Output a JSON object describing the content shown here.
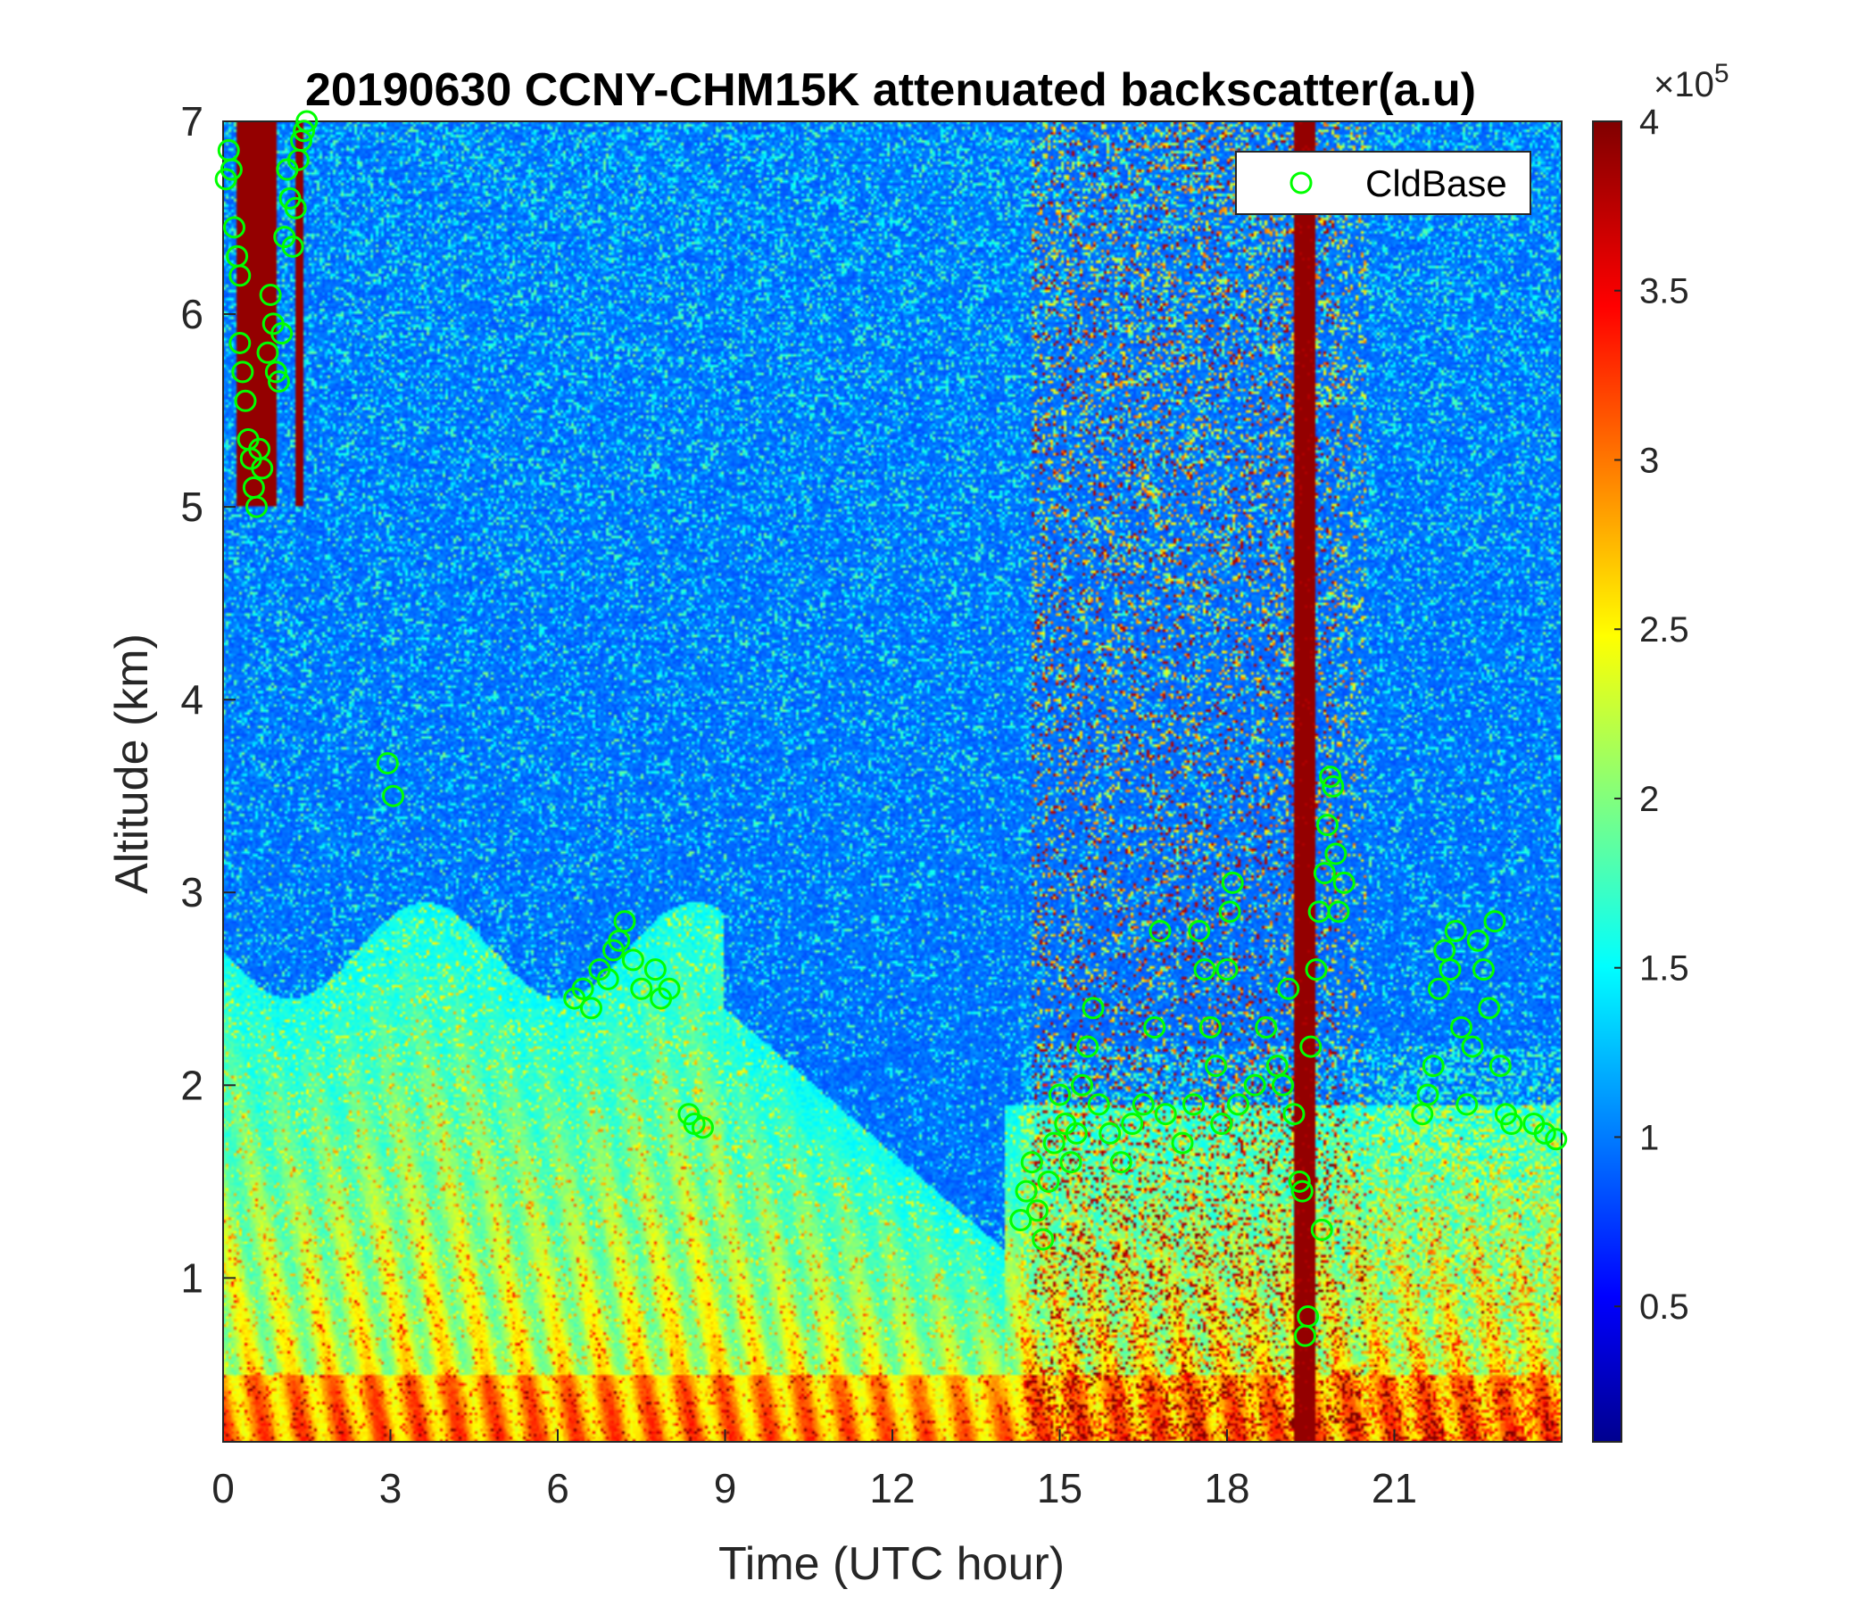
{
  "chart_data": {
    "type": "heatmap",
    "title": "20190630 CCNY-CHM15K attenuated backscatter(a.u)",
    "xlabel": "Time (UTC hour)",
    "ylabel": "Altitude (km)",
    "xlim": [
      0,
      24
    ],
    "ylim": [
      0.15,
      7
    ],
    "xticks": [
      0,
      3,
      6,
      9,
      12,
      15,
      18,
      21
    ],
    "xtick_labels": [
      "0",
      "3",
      "6",
      "9",
      "12",
      "15",
      "18",
      "21"
    ],
    "yticks": [
      1,
      2,
      3,
      4,
      5,
      6,
      7
    ],
    "ytick_labels": [
      "1",
      "2",
      "3",
      "4",
      "5",
      "6",
      "7"
    ],
    "colorbar": {
      "colormap": "jet",
      "limits": [
        0.1,
        4
      ],
      "ticks": [
        0.5,
        1,
        1.5,
        2,
        2.5,
        3,
        3.5,
        4
      ],
      "tick_labels": [
        "0.5",
        "1",
        "1.5",
        "2",
        "2.5",
        "3",
        "3.5",
        "4"
      ],
      "exponent_label": "×10",
      "exponent": "5"
    },
    "legend": {
      "entries": [
        "CldBase"
      ],
      "placement": "top-right"
    },
    "marker_color": "#00ff00",
    "series": [
      {
        "name": "CldBase",
        "type": "scatter",
        "points": [
          [
            0.05,
            6.7
          ],
          [
            0.1,
            6.85
          ],
          [
            0.15,
            6.75
          ],
          [
            0.2,
            6.45
          ],
          [
            0.25,
            6.3
          ],
          [
            0.3,
            6.2
          ],
          [
            0.3,
            5.85
          ],
          [
            0.35,
            5.7
          ],
          [
            0.4,
            5.55
          ],
          [
            0.45,
            5.35
          ],
          [
            0.5,
            5.25
          ],
          [
            0.55,
            5.1
          ],
          [
            0.6,
            5.0
          ],
          [
            0.65,
            5.3
          ],
          [
            0.7,
            5.2
          ],
          [
            0.8,
            5.8
          ],
          [
            0.85,
            6.1
          ],
          [
            0.9,
            5.95
          ],
          [
            0.95,
            5.7
          ],
          [
            1.0,
            5.65
          ],
          [
            1.05,
            5.9
          ],
          [
            1.1,
            6.4
          ],
          [
            1.15,
            6.75
          ],
          [
            1.2,
            6.6
          ],
          [
            1.25,
            6.35
          ],
          [
            1.3,
            6.55
          ],
          [
            1.35,
            6.8
          ],
          [
            1.4,
            6.9
          ],
          [
            1.45,
            6.95
          ],
          [
            1.5,
            7.0
          ],
          [
            2.95,
            3.67
          ],
          [
            3.05,
            3.5
          ],
          [
            6.3,
            2.45
          ],
          [
            6.45,
            2.5
          ],
          [
            6.6,
            2.4
          ],
          [
            6.75,
            2.6
          ],
          [
            6.9,
            2.55
          ],
          [
            7.0,
            2.7
          ],
          [
            7.1,
            2.75
          ],
          [
            7.2,
            2.85
          ],
          [
            7.35,
            2.65
          ],
          [
            7.5,
            2.5
          ],
          [
            7.75,
            2.6
          ],
          [
            7.85,
            2.45
          ],
          [
            8.0,
            2.5
          ],
          [
            8.35,
            1.85
          ],
          [
            8.45,
            1.8
          ],
          [
            8.6,
            1.78
          ],
          [
            14.3,
            1.3
          ],
          [
            14.4,
            1.45
          ],
          [
            14.5,
            1.6
          ],
          [
            14.6,
            1.35
          ],
          [
            14.7,
            1.2
          ],
          [
            14.8,
            1.5
          ],
          [
            14.9,
            1.7
          ],
          [
            15.0,
            1.95
          ],
          [
            15.1,
            1.8
          ],
          [
            15.2,
            1.6
          ],
          [
            15.3,
            1.75
          ],
          [
            15.4,
            2.0
          ],
          [
            15.5,
            2.2
          ],
          [
            15.6,
            2.4
          ],
          [
            15.7,
            1.9
          ],
          [
            15.9,
            1.75
          ],
          [
            16.1,
            1.6
          ],
          [
            16.3,
            1.8
          ],
          [
            16.5,
            1.9
          ],
          [
            16.7,
            2.3
          ],
          [
            16.8,
            2.8
          ],
          [
            16.9,
            1.85
          ],
          [
            17.2,
            1.7
          ],
          [
            17.4,
            1.9
          ],
          [
            17.5,
            2.8
          ],
          [
            17.6,
            2.6
          ],
          [
            17.7,
            2.3
          ],
          [
            17.8,
            2.1
          ],
          [
            17.9,
            1.8
          ],
          [
            18.0,
            2.6
          ],
          [
            18.05,
            2.9
          ],
          [
            18.1,
            3.05
          ],
          [
            18.2,
            1.9
          ],
          [
            18.5,
            2.0
          ],
          [
            18.7,
            2.3
          ],
          [
            18.9,
            2.1
          ],
          [
            19.0,
            2.0
          ],
          [
            19.1,
            2.5
          ],
          [
            19.2,
            1.85
          ],
          [
            19.3,
            1.5
          ],
          [
            19.35,
            1.45
          ],
          [
            19.4,
            0.7
          ],
          [
            19.45,
            0.8
          ],
          [
            19.5,
            2.2
          ],
          [
            19.6,
            2.6
          ],
          [
            19.65,
            2.9
          ],
          [
            19.7,
            1.25
          ],
          [
            19.75,
            3.1
          ],
          [
            19.8,
            3.35
          ],
          [
            19.85,
            3.6
          ],
          [
            19.9,
            3.55
          ],
          [
            19.95,
            3.2
          ],
          [
            20.0,
            2.9
          ],
          [
            20.1,
            3.05
          ],
          [
            21.5,
            1.85
          ],
          [
            21.6,
            1.95
          ],
          [
            21.7,
            2.1
          ],
          [
            21.8,
            2.5
          ],
          [
            21.9,
            2.7
          ],
          [
            22.0,
            2.6
          ],
          [
            22.1,
            2.8
          ],
          [
            22.2,
            2.3
          ],
          [
            22.3,
            1.9
          ],
          [
            22.4,
            2.2
          ],
          [
            22.5,
            2.75
          ],
          [
            22.6,
            2.6
          ],
          [
            22.7,
            2.4
          ],
          [
            22.8,
            2.85
          ],
          [
            22.9,
            2.1
          ],
          [
            23.0,
            1.85
          ],
          [
            23.1,
            1.8
          ],
          [
            23.5,
            1.8
          ],
          [
            23.7,
            1.75
          ],
          [
            23.9,
            1.72
          ]
        ]
      }
    ]
  }
}
